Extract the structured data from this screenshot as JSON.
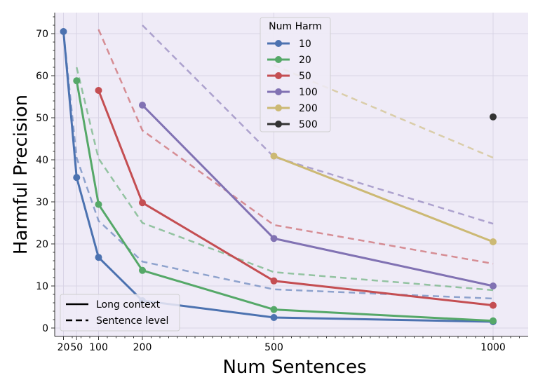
{
  "chart_data": {
    "type": "line",
    "xlabel": "Num Sentences",
    "ylabel": "Harmful Precision",
    "xlim": [
      0,
      1080
    ],
    "ylim": [
      -2,
      75
    ],
    "xticks": [
      20,
      50,
      100,
      200,
      500,
      1000
    ],
    "xtick_labels": [
      "20",
      "50",
      "100",
      "200",
      "500",
      "1000"
    ],
    "yticks": [
      0,
      10,
      20,
      30,
      40,
      50,
      60,
      70
    ],
    "grid": true,
    "background_color": "#efebf7",
    "legend": {
      "title": "Num Harm",
      "placement": "top-center"
    },
    "style_legend": {
      "placement": "bottom-left",
      "entries": [
        {
          "label": "Long context",
          "dash": "solid"
        },
        {
          "label": "Sentence level",
          "dash": "dashed"
        }
      ]
    },
    "series": [
      {
        "name": "10",
        "color": "#4c72b0",
        "long_context": {
          "x": [
            20,
            50,
            100,
            200,
            500,
            1000
          ],
          "y": [
            70.5,
            35.8,
            16.8,
            6.5,
            2.5,
            1.5
          ]
        },
        "sentence_level": {
          "x": [
            20,
            50,
            100,
            200,
            500,
            1000
          ],
          "y": [
            70.5,
            40.5,
            25.5,
            15.8,
            9.2,
            7.0
          ]
        }
      },
      {
        "name": "20",
        "color": "#55a868",
        "long_context": {
          "x": [
            50,
            100,
            200,
            500,
            1000
          ],
          "y": [
            58.8,
            29.4,
            13.7,
            4.4,
            1.7
          ]
        },
        "sentence_level": {
          "x": [
            50,
            100,
            200,
            500,
            1000
          ],
          "y": [
            62.0,
            40.3,
            25.0,
            13.3,
            9.0
          ]
        }
      },
      {
        "name": "50",
        "color": "#c44e52",
        "long_context": {
          "x": [
            100,
            200,
            500,
            1000
          ],
          "y": [
            56.5,
            29.8,
            11.2,
            5.4
          ]
        },
        "sentence_level": {
          "x": [
            100,
            200,
            500,
            1000
          ],
          "y": [
            71.0,
            47.0,
            24.5,
            15.3
          ]
        }
      },
      {
        "name": "100",
        "color": "#8172b3",
        "long_context": {
          "x": [
            200,
            500,
            1000
          ],
          "y": [
            53.0,
            21.3,
            10.0
          ]
        },
        "sentence_level": {
          "x": [
            200,
            500,
            1000
          ],
          "y": [
            72.0,
            40.7,
            24.8
          ]
        }
      },
      {
        "name": "200",
        "color": "#ccb974",
        "long_context": {
          "x": [
            500,
            1000
          ],
          "y": [
            40.9,
            20.5
          ]
        },
        "sentence_level": {
          "x": [
            500,
            1000
          ],
          "y": [
            62.5,
            40.5
          ]
        }
      },
      {
        "name": "500",
        "color": "#333333",
        "long_context": {
          "x": [
            1000
          ],
          "y": [
            50.2
          ]
        },
        "sentence_level": {
          "x": [],
          "y": []
        }
      }
    ]
  }
}
